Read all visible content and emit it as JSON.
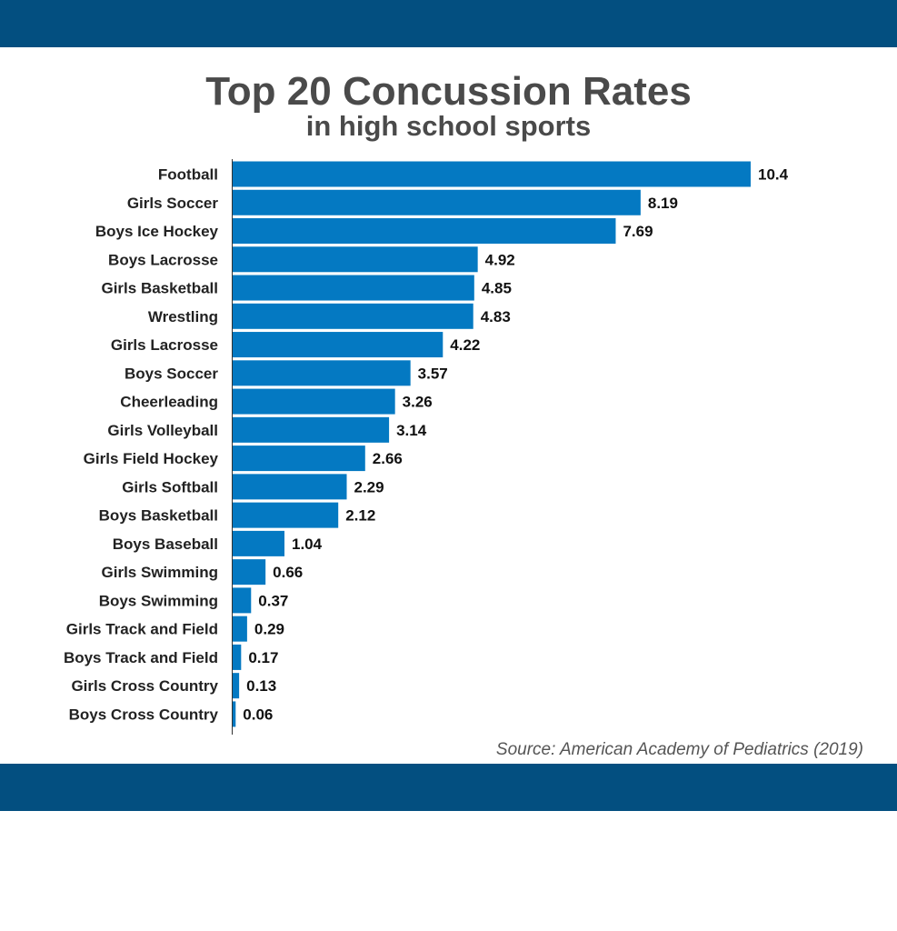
{
  "chart_data": {
    "type": "bar",
    "orientation": "horizontal",
    "title": "Top 20 Concussion Rates",
    "subtitle": "in high school sports",
    "categories": [
      "Football",
      "Girls Soccer",
      "Boys Ice Hockey",
      "Boys Lacrosse",
      "Girls Basketball",
      "Wrestling",
      "Girls Lacrosse",
      "Boys Soccer",
      "Cheerleading",
      "Girls Volleyball",
      "Girls Field Hockey",
      "Girls Softball",
      "Boys Basketball",
      "Boys Baseball",
      "Girls Swimming",
      "Boys Swimming",
      "Girls Track and Field",
      "Boys Track and Field",
      "Girls Cross Country",
      "Boys Cross Country"
    ],
    "values": [
      10.4,
      8.19,
      7.69,
      4.92,
      4.85,
      4.83,
      4.22,
      3.57,
      3.26,
      3.14,
      2.66,
      2.29,
      2.12,
      1.04,
      0.66,
      0.37,
      0.29,
      0.17,
      0.13,
      0.06
    ],
    "value_labels": [
      "10.4",
      "8.19",
      "7.69",
      "4.92",
      "4.85",
      "4.83",
      "4.22",
      "3.57",
      "3.26",
      "3.14",
      "2.66",
      "2.29",
      "2.12",
      "1.04",
      "0.66",
      "0.37",
      "0.29",
      "0.17",
      "0.13",
      "0.06"
    ],
    "xlim": [
      0,
      10.4
    ],
    "grid": false,
    "bar_color": "#0479c2",
    "source": "Source: American Academy of Pediatrics (2019)"
  }
}
